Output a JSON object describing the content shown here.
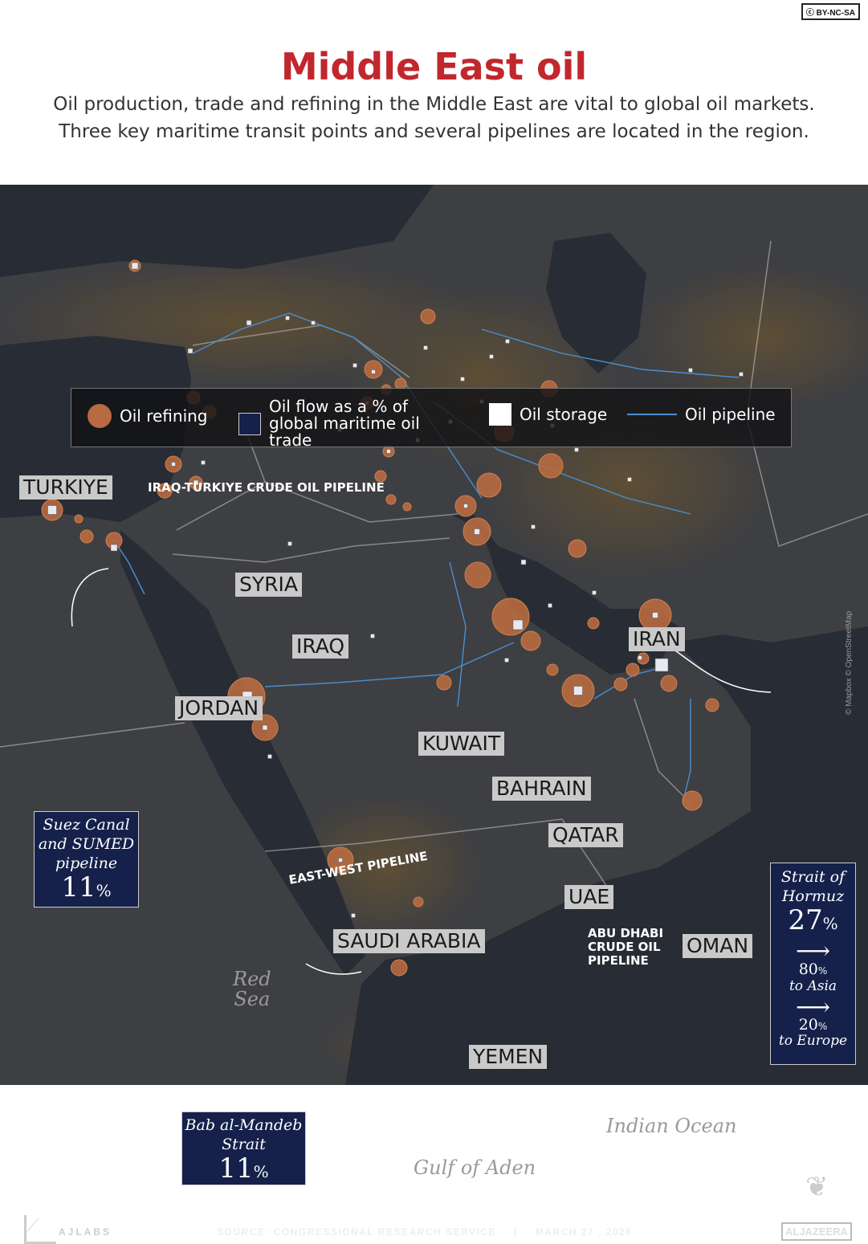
{
  "license": "BY-NC-SA",
  "title": "Middle East oil",
  "subtitle": [
    "Oil production, trade and refining in the Middle East are vital to global oil markets.",
    "Three key maritime transit points and several pipelines are located in the region."
  ],
  "legend": {
    "refining": "Oil refining",
    "flow": "Oil flow as a % of global maritime oil trade",
    "storage": "Oil storage",
    "pipeline": "Oil pipeline"
  },
  "colors": {
    "title": "#c1272d",
    "refining": "#b86a40",
    "flow_box": "#15214a",
    "pipeline": "#4a8fd0",
    "land": "#3e3f42",
    "sea": "#272c35"
  },
  "countries": [
    "TURKIYE",
    "SYRIA",
    "IRAQ",
    "JORDAN",
    "KUWAIT",
    "BAHRAIN",
    "QATAR",
    "UAE",
    "SAUDI ARABIA",
    "OMAN",
    "YEMEN",
    "IRAN"
  ],
  "pipelines": {
    "iraq_turkiye": "IRAQ-TURKIYE CRUDE OIL PIPELINE",
    "east_west": "EAST-WEST PIPELINE",
    "abu_dhabi": [
      "ABU DHABI",
      "CRUDE OIL",
      "PIPELINE"
    ]
  },
  "seas": {
    "red_sea": [
      "Red",
      "Sea"
    ],
    "indian_ocean": "Indian Ocean",
    "gulf_of_aden": "Gulf of Aden"
  },
  "chokepoints": {
    "suez": {
      "name": [
        "Suez Canal",
        "and SUMED",
        "pipeline"
      ],
      "pct": "11",
      "unit": "%"
    },
    "hormuz": {
      "name": [
        "Strait of",
        "Hormuz"
      ],
      "pct": "27",
      "unit": "%",
      "asia_pct": "80",
      "asia": "to Asia",
      "europe_pct": "20",
      "europe": "to Europe"
    },
    "bab": {
      "name": [
        "Bab al-Mandeb",
        "Strait"
      ],
      "pct": "11",
      "unit": "%"
    }
  },
  "credit": "© Mapbox © OpenStreetMap",
  "footer": {
    "brand": "AJLABS",
    "source": "SOURCE:  CONGRESSIONAL RESEARCH SERVICE",
    "separator": "|",
    "date": "MARCH 27 , 2026",
    "logo": "ALJAZEERA"
  }
}
